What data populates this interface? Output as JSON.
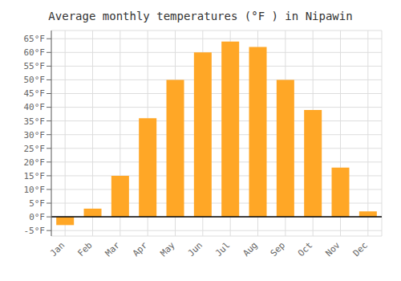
{
  "chart_data": {
    "type": "bar",
    "title": "Average monthly temperatures (°F ) in Nipawin",
    "categories": [
      "Jan",
      "Feb",
      "Mar",
      "Apr",
      "May",
      "Jun",
      "Jul",
      "Aug",
      "Sep",
      "Oct",
      "Nov",
      "Dec"
    ],
    "values": [
      -3,
      3,
      15,
      36,
      50,
      60,
      64,
      62,
      50,
      39,
      18,
      2
    ],
    "color": "#FFA726",
    "ylim": [
      -7,
      68
    ],
    "yticks": [
      {
        "value": -5,
        "label": "-5°F"
      },
      {
        "value": 0,
        "label": "0°F"
      },
      {
        "value": 5,
        "label": "5°F"
      },
      {
        "value": 10,
        "label": "10°F"
      },
      {
        "value": 15,
        "label": "15°F"
      },
      {
        "value": 20,
        "label": "20°F"
      },
      {
        "value": 25,
        "label": "25°F"
      },
      {
        "value": 30,
        "label": "30°F"
      },
      {
        "value": 35,
        "label": "35°F"
      },
      {
        "value": 40,
        "label": "40°F"
      },
      {
        "value": 45,
        "label": "45°F"
      },
      {
        "value": 50,
        "label": "50°F"
      },
      {
        "value": 55,
        "label": "55°F"
      },
      {
        "value": 60,
        "label": "60°F"
      },
      {
        "value": 65,
        "label": "65°F"
      }
    ],
    "grid": true
  }
}
